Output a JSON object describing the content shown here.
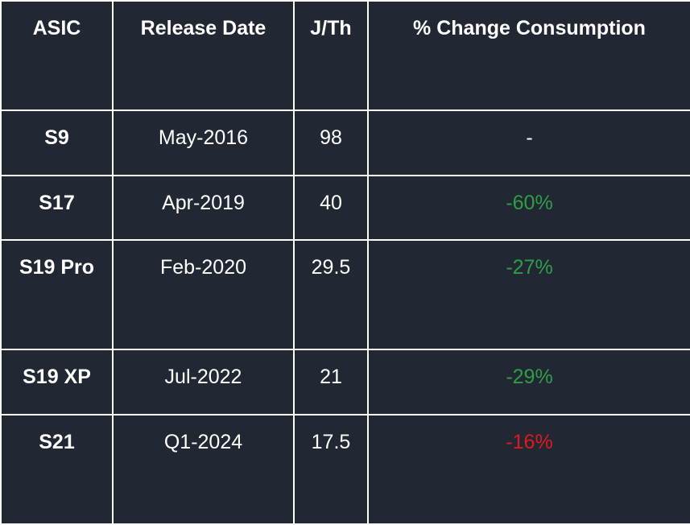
{
  "table": {
    "headers": [
      "ASIC",
      "Release Date",
      "J/Th",
      "% Change Consumption"
    ],
    "rows": [
      [
        "S9",
        "May-2016",
        "98",
        "-"
      ],
      [
        "S17",
        "Apr-2019",
        "40",
        "-60%"
      ],
      [
        "S19 Pro",
        "Feb-2020",
        "29.5",
        "-27%"
      ],
      [
        "S19 XP",
        "Jul-2022",
        "21",
        "-29%"
      ],
      [
        "S21",
        "Q1-2024",
        "17.5",
        "-16%"
      ]
    ]
  }
}
